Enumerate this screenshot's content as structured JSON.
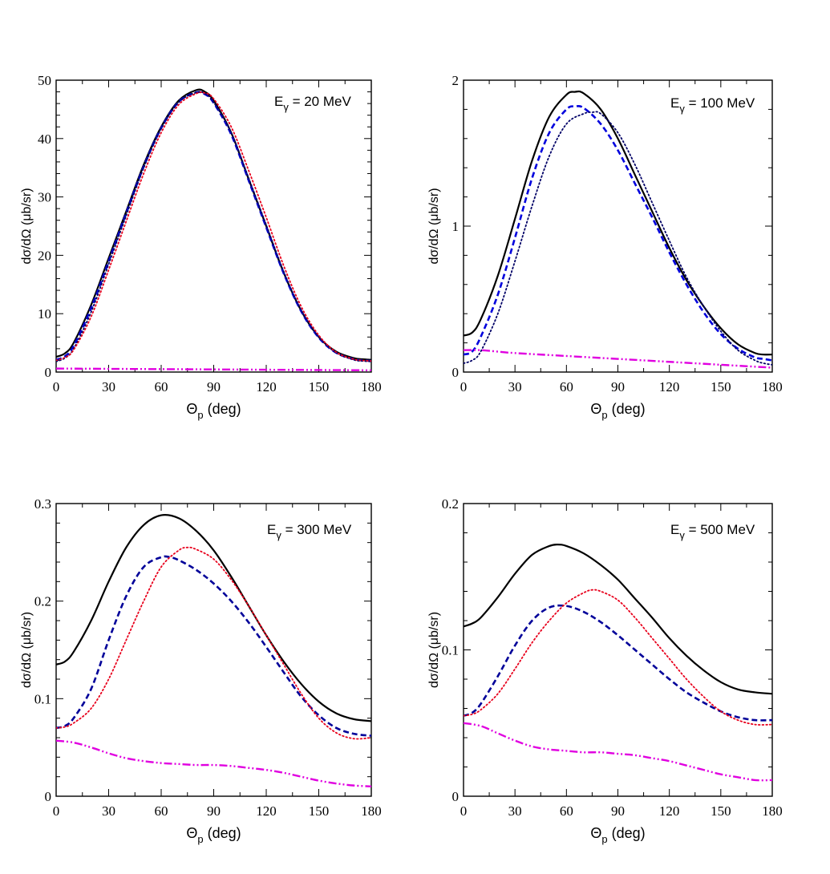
{
  "chart_data": [
    {
      "type": "line",
      "annotation": {
        "main": "E",
        "sub": "γ",
        "rest": " = 20 MeV"
      },
      "xlabel": {
        "main": "Θ",
        "sub": "p",
        "rest": " (deg)"
      },
      "ylabel": "dσ/dΩ (μb/sr)",
      "xlim": [
        0,
        180
      ],
      "ylim": [
        0,
        50
      ],
      "xticks": [
        0,
        30,
        60,
        90,
        120,
        150,
        180
      ],
      "yticks": [
        0,
        10,
        20,
        30,
        40,
        50
      ],
      "yticklabels": [
        "0",
        "10",
        "20",
        "30",
        "40",
        "50"
      ],
      "series": [
        {
          "style": "solid",
          "color": "#000000",
          "x": [
            0,
            5,
            10,
            20,
            30,
            40,
            50,
            60,
            70,
            80,
            85,
            90,
            100,
            110,
            120,
            130,
            140,
            150,
            160,
            170,
            175,
            180
          ],
          "y": [
            2.6,
            3.2,
            5.0,
            11.5,
            19.5,
            27.5,
            35.5,
            42.0,
            46.5,
            48.3,
            48.0,
            46.5,
            41.0,
            33.0,
            25.0,
            17.0,
            10.5,
            6.0,
            3.5,
            2.4,
            2.2,
            2.1
          ]
        },
        {
          "style": "dashed",
          "color": "#0000cc",
          "x": [
            0,
            5,
            10,
            20,
            30,
            40,
            50,
            60,
            70,
            80,
            85,
            90,
            100,
            110,
            120,
            130,
            140,
            150,
            160,
            170,
            175,
            180
          ],
          "y": [
            2.1,
            2.7,
            4.5,
            11.0,
            19.0,
            27.2,
            35.2,
            41.8,
            46.3,
            47.9,
            47.6,
            46.1,
            40.7,
            32.8,
            24.8,
            16.9,
            10.4,
            5.9,
            3.3,
            2.2,
            2.0,
            1.9
          ]
        },
        {
          "style": "dotted",
          "color": "#000066",
          "x": [
            0,
            5,
            10,
            20,
            30,
            40,
            50,
            60,
            70,
            80,
            85,
            90,
            100,
            110,
            120,
            130,
            140,
            150,
            160,
            170,
            175,
            180
          ],
          "y": [
            1.8,
            2.4,
            4.0,
            10.3,
            18.5,
            26.8,
            35.0,
            41.7,
            46.2,
            47.9,
            47.7,
            46.2,
            41.0,
            33.2,
            25.2,
            17.2,
            10.6,
            6.0,
            3.3,
            2.1,
            1.9,
            1.8
          ]
        },
        {
          "style": "dotted",
          "color": "#e8001c",
          "x": [
            0,
            5,
            10,
            20,
            30,
            40,
            50,
            60,
            70,
            80,
            85,
            90,
            100,
            110,
            120,
            130,
            140,
            150,
            160,
            170,
            175,
            180
          ],
          "y": [
            2.0,
            2.5,
            3.8,
            9.5,
            17.5,
            25.8,
            34.0,
            41.0,
            45.8,
            47.7,
            47.8,
            46.8,
            42.0,
            34.5,
            26.5,
            18.2,
            11.2,
            6.3,
            3.4,
            2.2,
            2.0,
            1.9
          ]
        },
        {
          "style": "dashdotdot",
          "color": "#e000e0",
          "x": [
            0,
            30,
            60,
            90,
            120,
            150,
            180
          ],
          "y": [
            0.6,
            0.55,
            0.5,
            0.45,
            0.4,
            0.35,
            0.3
          ]
        }
      ]
    },
    {
      "type": "line",
      "annotation": {
        "main": "E",
        "sub": "γ",
        "rest": " = 100 MeV"
      },
      "xlabel": {
        "main": "Θ",
        "sub": "p",
        "rest": " (deg)"
      },
      "ylabel": "dσ/dΩ (μb/sr)",
      "xlim": [
        0,
        180
      ],
      "ylim": [
        0,
        2
      ],
      "xticks": [
        0,
        30,
        60,
        90,
        120,
        150,
        180
      ],
      "yticks": [
        0,
        1,
        2
      ],
      "yticklabels": [
        "0",
        "1",
        "2"
      ],
      "series": [
        {
          "style": "solid",
          "color": "#000000",
          "x": [
            0,
            5,
            10,
            20,
            30,
            40,
            50,
            60,
            65,
            70,
            80,
            90,
            100,
            110,
            120,
            130,
            140,
            150,
            160,
            170,
            175,
            180
          ],
          "y": [
            0.25,
            0.27,
            0.36,
            0.66,
            1.05,
            1.45,
            1.75,
            1.9,
            1.92,
            1.91,
            1.8,
            1.6,
            1.35,
            1.1,
            0.85,
            0.63,
            0.45,
            0.3,
            0.19,
            0.13,
            0.12,
            0.12
          ]
        },
        {
          "style": "dashed",
          "color": "#0000dd",
          "x": [
            0,
            5,
            10,
            20,
            30,
            40,
            50,
            60,
            65,
            70,
            80,
            90,
            100,
            110,
            120,
            130,
            140,
            150,
            160,
            170,
            175,
            180
          ],
          "y": [
            0.12,
            0.14,
            0.24,
            0.53,
            0.92,
            1.33,
            1.64,
            1.8,
            1.82,
            1.81,
            1.7,
            1.52,
            1.29,
            1.06,
            0.82,
            0.6,
            0.41,
            0.26,
            0.16,
            0.1,
            0.09,
            0.08
          ]
        },
        {
          "style": "dotted",
          "color": "#000066",
          "x": [
            0,
            5,
            10,
            20,
            30,
            40,
            50,
            60,
            70,
            75,
            80,
            90,
            100,
            110,
            120,
            130,
            140,
            150,
            160,
            170,
            175,
            180
          ],
          "y": [
            0.06,
            0.08,
            0.14,
            0.4,
            0.76,
            1.14,
            1.48,
            1.7,
            1.77,
            1.78,
            1.77,
            1.64,
            1.42,
            1.16,
            0.9,
            0.65,
            0.45,
            0.28,
            0.15,
            0.08,
            0.06,
            0.05
          ]
        },
        {
          "style": "dashdotdot",
          "color": "#e000e0",
          "x": [
            0,
            10,
            20,
            30,
            60,
            90,
            120,
            150,
            180
          ],
          "y": [
            0.15,
            0.15,
            0.14,
            0.13,
            0.11,
            0.09,
            0.07,
            0.05,
            0.03
          ]
        }
      ]
    },
    {
      "type": "line",
      "annotation": {
        "main": "E",
        "sub": "γ",
        "rest": " = 300 MeV"
      },
      "xlabel": {
        "main": "Θ",
        "sub": "p",
        "rest": " (deg)"
      },
      "ylabel": "dσ/dΩ (μb/sr)",
      "xlim": [
        0,
        180
      ],
      "ylim": [
        0,
        0.3
      ],
      "xticks": [
        0,
        30,
        60,
        90,
        120,
        150,
        180
      ],
      "yticks": [
        0,
        0.1,
        0.2,
        0.3
      ],
      "yticklabels": [
        "0",
        "0.1",
        "0.2",
        "0.3"
      ],
      "series": [
        {
          "style": "solid",
          "color": "#000000",
          "x": [
            0,
            5,
            10,
            20,
            30,
            40,
            50,
            60,
            70,
            80,
            90,
            100,
            110,
            120,
            130,
            140,
            150,
            160,
            170,
            180
          ],
          "y": [
            0.135,
            0.138,
            0.148,
            0.18,
            0.22,
            0.255,
            0.278,
            0.288,
            0.285,
            0.272,
            0.252,
            0.225,
            0.195,
            0.165,
            0.138,
            0.115,
            0.097,
            0.085,
            0.079,
            0.077
          ]
        },
        {
          "style": "dashed",
          "color": "#000099",
          "x": [
            0,
            5,
            10,
            20,
            30,
            40,
            50,
            60,
            65,
            70,
            80,
            90,
            100,
            110,
            120,
            130,
            140,
            150,
            160,
            170,
            180
          ],
          "y": [
            0.07,
            0.072,
            0.08,
            0.11,
            0.16,
            0.205,
            0.235,
            0.245,
            0.245,
            0.242,
            0.232,
            0.218,
            0.2,
            0.178,
            0.153,
            0.127,
            0.102,
            0.083,
            0.07,
            0.064,
            0.062
          ]
        },
        {
          "style": "dotted",
          "color": "#e8001c",
          "x": [
            0,
            5,
            10,
            20,
            30,
            40,
            50,
            60,
            70,
            75,
            80,
            90,
            100,
            110,
            120,
            130,
            140,
            150,
            160,
            170,
            180
          ],
          "y": [
            0.07,
            0.071,
            0.075,
            0.09,
            0.12,
            0.16,
            0.2,
            0.235,
            0.252,
            0.255,
            0.253,
            0.243,
            0.222,
            0.195,
            0.165,
            0.135,
            0.105,
            0.08,
            0.065,
            0.059,
            0.06
          ]
        },
        {
          "style": "dashdotdot",
          "color": "#e000e0",
          "x": [
            0,
            10,
            20,
            30,
            40,
            50,
            60,
            70,
            80,
            90,
            100,
            110,
            120,
            130,
            140,
            150,
            160,
            170,
            180
          ],
          "y": [
            0.057,
            0.055,
            0.05,
            0.044,
            0.039,
            0.036,
            0.034,
            0.033,
            0.032,
            0.032,
            0.031,
            0.029,
            0.027,
            0.024,
            0.02,
            0.016,
            0.013,
            0.011,
            0.01
          ]
        }
      ]
    },
    {
      "type": "line",
      "annotation": {
        "main": "E",
        "sub": "γ",
        "rest": " = 500 MeV"
      },
      "xlabel": {
        "main": "Θ",
        "sub": "p",
        "rest": " (deg)"
      },
      "ylabel": "dσ/dΩ (μb/sr)",
      "xlim": [
        0,
        180
      ],
      "ylim": [
        0,
        0.2
      ],
      "xticks": [
        0,
        30,
        60,
        90,
        120,
        150,
        180
      ],
      "yticks": [
        0,
        0.1,
        0.2
      ],
      "yticklabels": [
        "0",
        "0.1",
        "0.2"
      ],
      "series": [
        {
          "style": "solid",
          "color": "#000000",
          "x": [
            0,
            5,
            10,
            20,
            30,
            40,
            50,
            55,
            60,
            70,
            80,
            90,
            100,
            110,
            120,
            130,
            140,
            150,
            160,
            170,
            180
          ],
          "y": [
            0.116,
            0.118,
            0.122,
            0.136,
            0.152,
            0.165,
            0.171,
            0.172,
            0.171,
            0.166,
            0.158,
            0.148,
            0.135,
            0.122,
            0.108,
            0.096,
            0.086,
            0.078,
            0.073,
            0.071,
            0.07
          ]
        },
        {
          "style": "dashed",
          "color": "#000099",
          "x": [
            0,
            5,
            10,
            20,
            30,
            40,
            50,
            60,
            70,
            80,
            90,
            100,
            110,
            120,
            130,
            140,
            150,
            160,
            170,
            180
          ],
          "y": [
            0.055,
            0.057,
            0.063,
            0.082,
            0.103,
            0.12,
            0.129,
            0.13,
            0.126,
            0.119,
            0.11,
            0.1,
            0.09,
            0.08,
            0.071,
            0.064,
            0.058,
            0.054,
            0.052,
            0.052
          ]
        },
        {
          "style": "dotted",
          "color": "#e8001c",
          "x": [
            0,
            5,
            10,
            20,
            30,
            40,
            50,
            60,
            70,
            75,
            80,
            90,
            100,
            110,
            120,
            130,
            140,
            150,
            160,
            170,
            180
          ],
          "y": [
            0.055,
            0.056,
            0.059,
            0.07,
            0.087,
            0.105,
            0.12,
            0.132,
            0.139,
            0.141,
            0.14,
            0.134,
            0.122,
            0.108,
            0.094,
            0.08,
            0.068,
            0.058,
            0.052,
            0.049,
            0.049
          ]
        },
        {
          "style": "dashdotdot",
          "color": "#e000e0",
          "x": [
            0,
            10,
            20,
            30,
            40,
            50,
            60,
            70,
            80,
            90,
            100,
            110,
            120,
            130,
            140,
            150,
            160,
            170,
            180
          ],
          "y": [
            0.05,
            0.048,
            0.043,
            0.038,
            0.034,
            0.032,
            0.031,
            0.03,
            0.03,
            0.029,
            0.028,
            0.026,
            0.024,
            0.021,
            0.018,
            0.015,
            0.013,
            0.011,
            0.011
          ]
        }
      ]
    }
  ]
}
